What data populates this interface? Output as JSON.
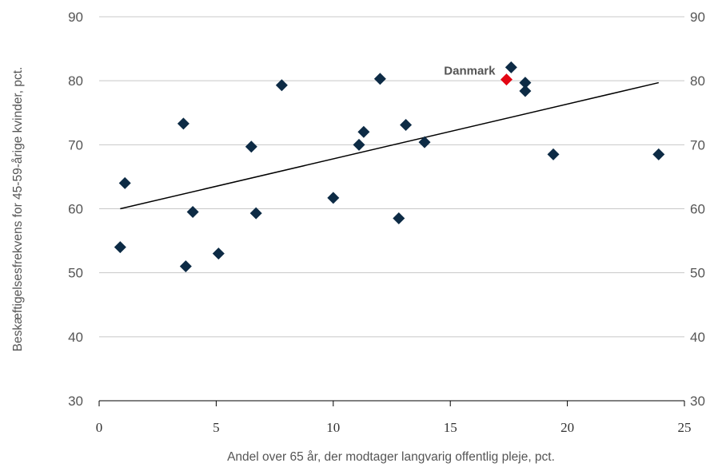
{
  "chart_data": {
    "type": "scatter",
    "xlabel": "Andel over 65 år, der modtager langvarig offentlig pleje, pct.",
    "ylabel": "Beskæftigelsesfrekvens for 45-59-årige kvinder, pct.",
    "xlim": [
      0,
      25
    ],
    "ylim": [
      30,
      90
    ],
    "x_ticks": [
      0,
      5,
      10,
      15,
      20,
      25
    ],
    "y_ticks": [
      30,
      40,
      50,
      60,
      70,
      80,
      90
    ],
    "grid": "horizontal",
    "series": [
      {
        "color": "#0d2b45",
        "marker": "diamond",
        "points": [
          [
            0.9,
            54.0
          ],
          [
            1.1,
            64.0
          ],
          [
            3.6,
            73.3
          ],
          [
            3.7,
            51.0
          ],
          [
            4.0,
            59.5
          ],
          [
            5.1,
            53.0
          ],
          [
            6.5,
            69.7
          ],
          [
            6.7,
            59.3
          ],
          [
            7.8,
            79.3
          ],
          [
            10.0,
            61.7
          ],
          [
            11.1,
            70.0
          ],
          [
            11.3,
            72.0
          ],
          [
            12.0,
            80.3
          ],
          [
            12.8,
            58.5
          ],
          [
            13.1,
            73.1
          ],
          [
            13.9,
            70.4
          ],
          [
            17.6,
            82.1
          ],
          [
            18.2,
            79.7
          ],
          [
            18.2,
            78.4
          ],
          [
            19.4,
            68.5
          ],
          [
            23.9,
            68.5
          ]
        ]
      },
      {
        "color": "#e30613",
        "marker": "diamond",
        "points": [
          [
            17.4,
            80.2
          ]
        ]
      }
    ],
    "trendline": {
      "x": [
        0.9,
        23.9
      ],
      "y": [
        60.0,
        79.7
      ],
      "color": "#000000"
    },
    "annotations": [
      {
        "text": "Danmark",
        "x": 17.4,
        "y": 80.2
      }
    ]
  }
}
